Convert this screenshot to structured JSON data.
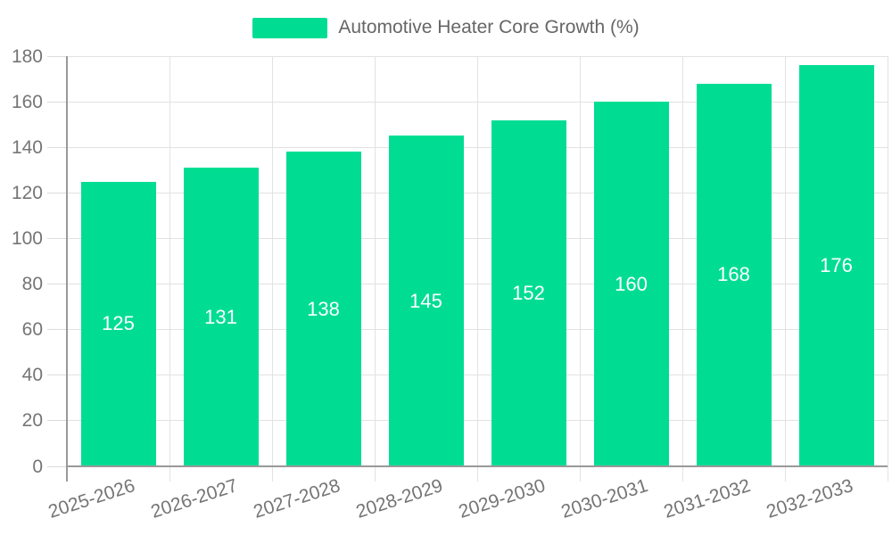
{
  "legend": {
    "label": "Automotive Heater Core Growth (%)"
  },
  "chart_data": {
    "type": "bar",
    "title": "",
    "legend_entries": [
      "Automotive Heater Core Growth (%)"
    ],
    "legend_position": "top-center",
    "categories": [
      "2025-2026",
      "2026-2027",
      "2027-2028",
      "2028-2029",
      "2029-2030",
      "2030-2031",
      "2031-2032",
      "2032-2033"
    ],
    "values": [
      125,
      131,
      138,
      145,
      152,
      160,
      168,
      176
    ],
    "value_labels_visible": true,
    "value_label_position": "inside-center",
    "xlabel": "",
    "ylabel": "",
    "ylim": [
      0,
      180
    ],
    "yticks": [
      0,
      20,
      40,
      60,
      80,
      100,
      120,
      140,
      160,
      180
    ],
    "grid": true,
    "x_tick_label_rotation_deg": -18,
    "colors": {
      "bar": "#00DD93",
      "grid": "#e2e2e2",
      "axis": "#999999",
      "tick_text": "#757575",
      "legend_text": "#666666",
      "value_text": "#ffffff",
      "background": "#ffffff"
    }
  }
}
